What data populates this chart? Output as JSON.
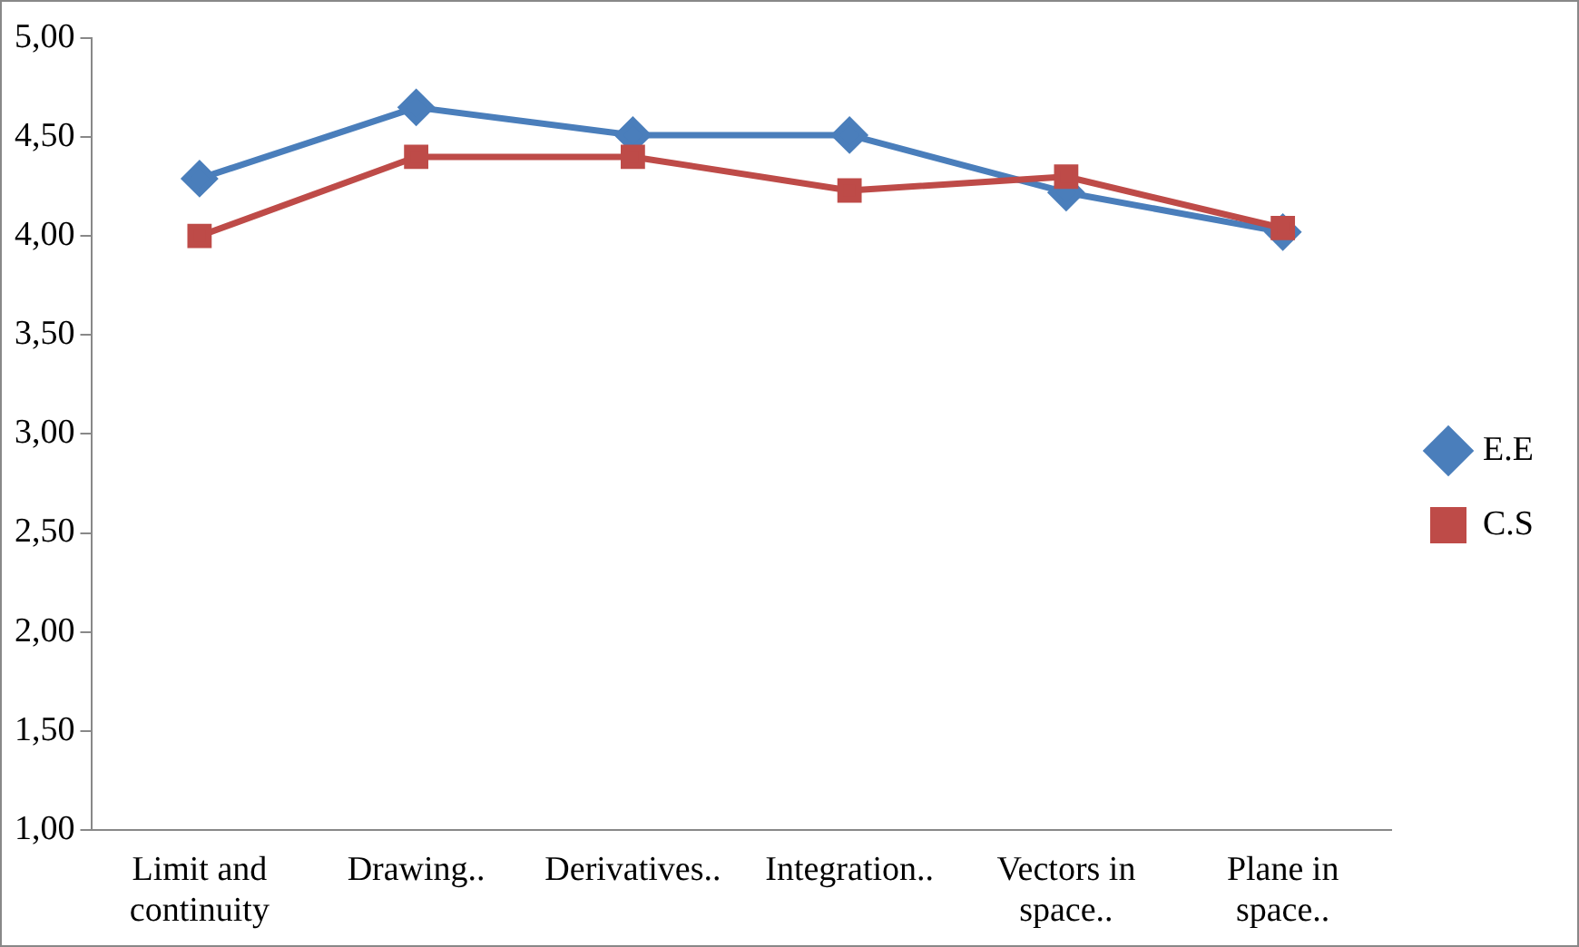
{
  "chart_data": {
    "type": "line",
    "categories": [
      "Limit and continuity",
      "Drawing..",
      "Derivatives..",
      "Integration..",
      "Vectors in space..",
      "Plane in space.."
    ],
    "series": [
      {
        "name": "E.E",
        "color": "#4a7ebb",
        "marker": "diamond",
        "values": [
          4.29,
          4.65,
          4.51,
          4.51,
          4.22,
          4.02
        ]
      },
      {
        "name": "C.S",
        "color": "#be4b48",
        "marker": "square",
        "values": [
          4.0,
          4.4,
          4.4,
          4.23,
          4.3,
          4.04
        ]
      }
    ],
    "ylim": [
      1,
      5
    ],
    "yticks": [
      {
        "value": 1,
        "label": "1,00"
      },
      {
        "value": 1.5,
        "label": "1,50"
      },
      {
        "value": 2,
        "label": "2,00"
      },
      {
        "value": 2.5,
        "label": "2,50"
      },
      {
        "value": 3,
        "label": "3,00"
      },
      {
        "value": 3.5,
        "label": "3,50"
      },
      {
        "value": 4,
        "label": "4,00"
      },
      {
        "value": 4.5,
        "label": "4,50"
      },
      {
        "value": 5,
        "label": "5,00"
      }
    ],
    "grid": false,
    "legend": "right",
    "line_style": "solid"
  }
}
